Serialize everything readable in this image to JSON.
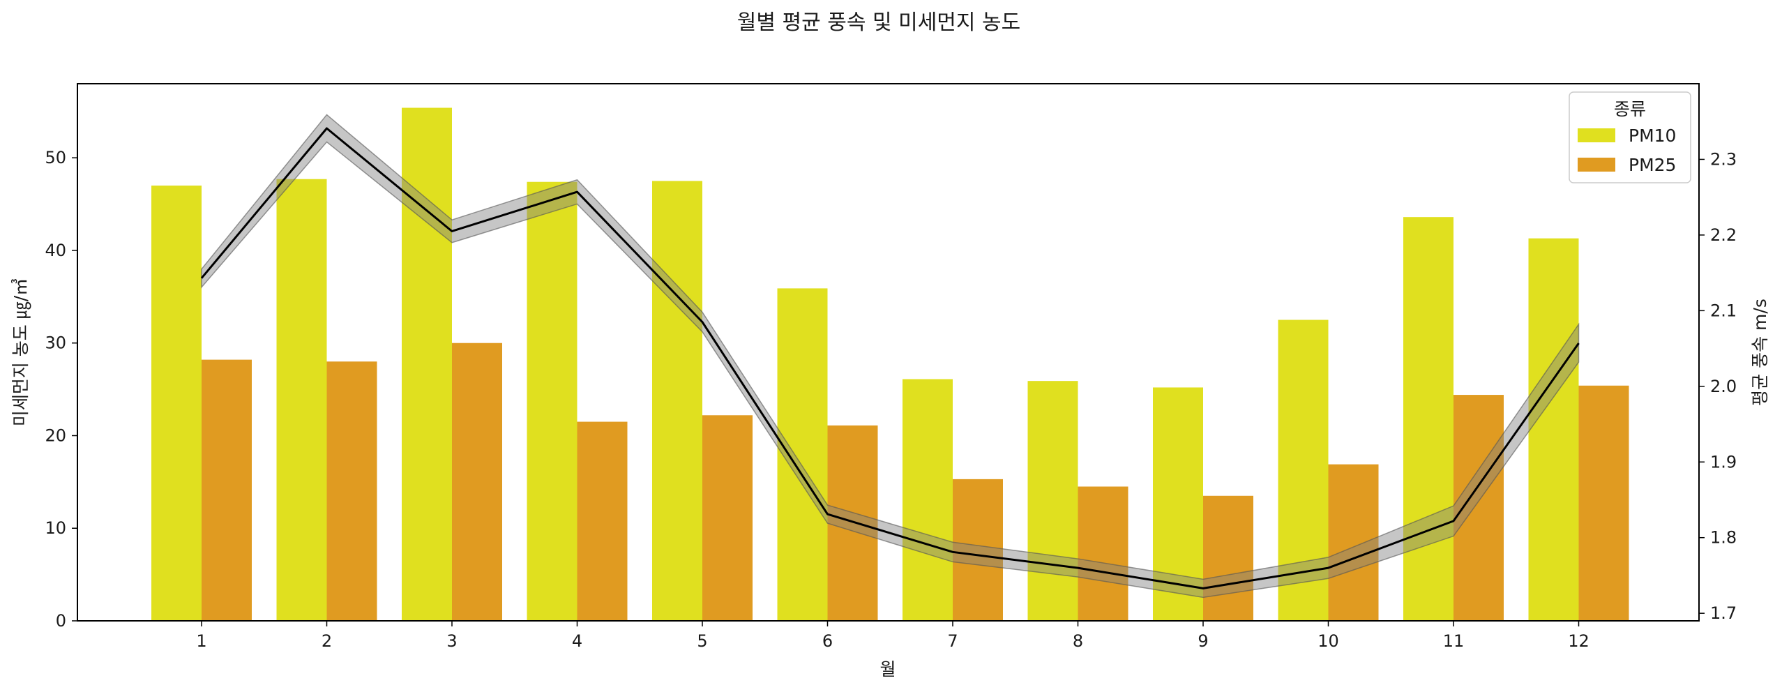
{
  "chart_data": {
    "type": "bar",
    "title": "월별 평균 풍속 및 미세먼지 농도",
    "xlabel": "월",
    "ylabel": "미세먼지 농도 ㎍/㎥",
    "ylabel_right": "평균 풍속 m/s",
    "categories": [
      "1",
      "2",
      "3",
      "4",
      "5",
      "6",
      "7",
      "8",
      "9",
      "10",
      "11",
      "12"
    ],
    "ylim": [
      0,
      58
    ],
    "yticks": [
      "0",
      "10",
      "20",
      "30",
      "40",
      "50"
    ],
    "ylim_right": [
      1.69,
      2.4
    ],
    "yticks_right": [
      "1.7",
      "1.8",
      "1.9",
      "2.0",
      "2.1",
      "2.2",
      "2.3"
    ],
    "legend": {
      "title": "종류",
      "position": "top-right"
    },
    "series": [
      {
        "name": "PM10",
        "kind": "bar",
        "axis": "left",
        "color": "#e0e01f",
        "values": [
          47.0,
          47.7,
          55.4,
          47.4,
          47.5,
          35.9,
          26.1,
          25.9,
          25.2,
          32.5,
          43.6,
          41.3
        ]
      },
      {
        "name": "PM25",
        "kind": "bar",
        "axis": "left",
        "color": "#e09b21",
        "values": [
          28.2,
          28.0,
          30.0,
          21.5,
          22.2,
          21.1,
          15.3,
          14.5,
          13.5,
          16.9,
          24.4,
          25.4
        ]
      },
      {
        "kind": "line",
        "axis": "right",
        "color": "#000000",
        "band_color": "#808080",
        "values": [
          2.143,
          2.341,
          2.205,
          2.257,
          2.085,
          1.831,
          1.781,
          1.76,
          1.733,
          1.76,
          1.822,
          2.057
        ],
        "band": [
          0.012,
          0.018,
          0.015,
          0.016,
          0.013,
          0.012,
          0.013,
          0.012,
          0.012,
          0.014,
          0.02,
          0.025
        ]
      }
    ]
  }
}
